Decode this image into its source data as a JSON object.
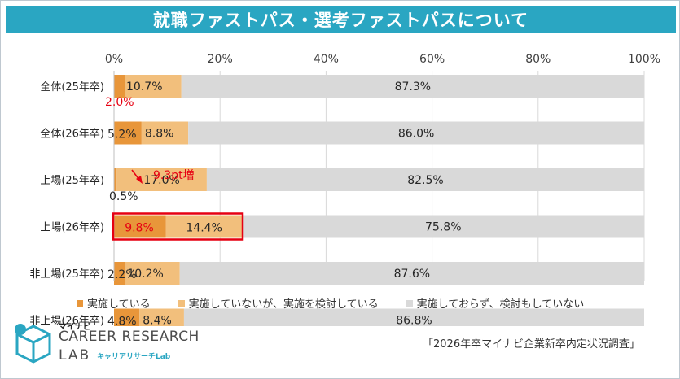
{
  "header": {
    "title": "就職ファストパス・選考ファストパスについて"
  },
  "chart_data": {
    "type": "bar",
    "orientation": "horizontal",
    "stacked": true,
    "xlim": [
      0,
      100
    ],
    "x_ticks": [
      "0%",
      "20%",
      "40%",
      "60%",
      "80%",
      "100%"
    ],
    "grid": true,
    "legend_position": "bottom",
    "categories": [
      "全体(25年卒)",
      "全体(26年卒)",
      "上場(25年卒)",
      "上場(26年卒)",
      "非上場(25年卒)",
      "非上場(26年卒)"
    ],
    "series": [
      {
        "name": "実施している",
        "color": "#e8963a",
        "values": [
          2.0,
          5.2,
          0.5,
          9.8,
          2.2,
          4.8
        ],
        "labels": [
          "2.0%",
          "5.2%",
          "0.5%",
          "9.8%",
          "2.2%",
          "4.8%"
        ]
      },
      {
        "name": "実施していないが、実施を検討している",
        "color": "#f2bf7c",
        "values": [
          10.7,
          8.8,
          17.0,
          14.4,
          10.2,
          8.4
        ],
        "labels": [
          "10.7%",
          "8.8%",
          "17.0%",
          "14.4%",
          "10.2%",
          "8.4%"
        ]
      },
      {
        "name": "実施しておらず、検討もしていない",
        "color": "#d9d9d9",
        "values": [
          87.3,
          86.0,
          82.5,
          75.8,
          87.6,
          86.8
        ],
        "labels": [
          "87.3%",
          "86.0%",
          "82.5%",
          "75.8%",
          "87.6%",
          "86.8%"
        ]
      }
    ],
    "annotation": {
      "text": "9.3pt増",
      "color": "#e60012"
    }
  },
  "source": "「2026年卒マイナビ企業新卒内定状況調査」",
  "logo": {
    "brand": "マイナビ",
    "line1": "CAREER RESEARCH",
    "line2": "LAB",
    "kana": "キャリアリサーチLab"
  }
}
